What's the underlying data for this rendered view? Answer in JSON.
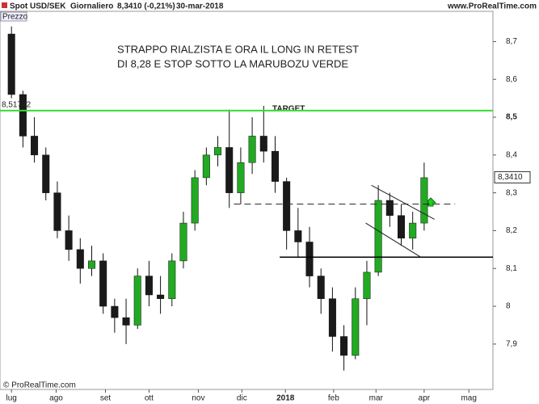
{
  "chart_data": {
    "type": "candlestick",
    "title": "Spot USD/SEK",
    "period": "Giornaliero",
    "last_price": "8,3410 (-0,21%)",
    "date": "30-mar-2018",
    "source": "www.ProRealTime.com",
    "panel_label": "Prezzo",
    "copyright": "© ProRealTime.com",
    "annotation_lines": [
      "STRAPPO RIALZISTA E ORA IL LONG IN RETEST",
      "DI 8,28 E STOP SOTTO LA MARUBOZU VERDE"
    ],
    "target_label": "TARGET",
    "target_value_label": "8,51742",
    "last_value_label": "8,3410",
    "up_color": "#22aa22",
    "down_color": "#1a1a1a",
    "categories": [
      null,
      null,
      null,
      null,
      null,
      null,
      null,
      null,
      null,
      null,
      null,
      null,
      null,
      null,
      null,
      null,
      null,
      null,
      null,
      null,
      null,
      null,
      null,
      null,
      null,
      null,
      null,
      null,
      null,
      null,
      null,
      null,
      null,
      null,
      null,
      null,
      null
    ],
    "open": [
      8.72,
      8.56,
      8.45,
      8.4,
      8.3,
      8.2,
      8.15,
      8.1,
      8.12,
      8.0,
      7.97,
      7.95,
      8.08,
      8.03,
      8.02,
      8.12,
      8.22,
      8.34,
      8.4,
      8.42,
      8.3,
      8.38,
      8.45,
      8.41,
      8.33,
      8.2,
      8.17,
      8.08,
      8.02,
      7.92,
      7.87,
      8.02,
      8.09,
      8.28,
      8.24,
      8.18,
      8.22
    ],
    "high": [
      8.74,
      8.57,
      8.5,
      8.42,
      8.33,
      8.24,
      8.18,
      8.16,
      8.14,
      8.02,
      8.02,
      8.1,
      8.12,
      8.08,
      8.14,
      8.25,
      8.36,
      8.42,
      8.45,
      8.52,
      8.42,
      8.5,
      8.53,
      8.45,
      8.34,
      8.26,
      8.21,
      8.1,
      8.05,
      7.95,
      8.05,
      8.12,
      8.32,
      8.3,
      8.27,
      8.25,
      8.38
    ],
    "low": [
      8.55,
      8.42,
      8.38,
      8.28,
      8.18,
      8.12,
      8.06,
      8.08,
      7.98,
      7.93,
      7.9,
      7.94,
      8.0,
      7.98,
      8.0,
      8.1,
      8.2,
      8.32,
      8.37,
      8.26,
      8.27,
      8.35,
      8.38,
      8.3,
      8.15,
      8.13,
      8.05,
      7.98,
      7.88,
      7.83,
      7.86,
      7.95,
      8.08,
      8.21,
      8.16,
      8.15,
      8.2
    ],
    "close": [
      8.56,
      8.45,
      8.4,
      8.3,
      8.2,
      8.15,
      8.1,
      8.12,
      8.0,
      7.97,
      7.95,
      8.08,
      8.03,
      8.02,
      8.12,
      8.22,
      8.34,
      8.4,
      8.42,
      8.3,
      8.38,
      8.45,
      8.41,
      8.33,
      8.2,
      8.17,
      8.08,
      8.02,
      7.92,
      7.87,
      8.02,
      8.09,
      8.28,
      8.24,
      8.18,
      8.22,
      8.34
    ],
    "xlim": [
      -1,
      42
    ],
    "xticks": [
      {
        "value": 0,
        "label": "lug"
      },
      {
        "value": 3.9,
        "label": "ago"
      },
      {
        "value": 8.2,
        "label": "set"
      },
      {
        "value": 12,
        "label": "ott"
      },
      {
        "value": 16.3,
        "label": "nov"
      },
      {
        "value": 20.1,
        "label": "dic"
      },
      {
        "value": 23.9,
        "label": "2018"
      },
      {
        "value": 28.1,
        "label": "feb"
      },
      {
        "value": 31.8,
        "label": "mar"
      },
      {
        "value": 36,
        "label": "apr"
      },
      {
        "value": 39.9,
        "label": "mag"
      }
    ],
    "ylim": [
      7.78,
      8.78
    ],
    "yticks": [
      {
        "value": 7.9,
        "label": "7,9"
      },
      8,
      {
        "value": 8.1,
        "label": "8,1"
      },
      {
        "value": 8.2,
        "label": "8,2"
      },
      {
        "value": 8.3,
        "label": "8,3"
      },
      {
        "value": 8.4,
        "label": "8,4"
      },
      {
        "value": 8.5,
        "label": "8,5"
      },
      {
        "value": 8.6,
        "label": "8,6"
      },
      {
        "value": 8.7,
        "label": "8,7"
      }
    ],
    "target_value": 8.51742,
    "last_value": 8.341,
    "lines": [
      {
        "x": [
          -1,
          42
        ],
        "y": [
          8.51742,
          8.51742
        ],
        "color": "#33dd33",
        "width": 2,
        "dash": false
      },
      {
        "x": [
          19.4,
          38.7
        ],
        "y": [
          8.27,
          8.27
        ],
        "color": "#222222",
        "width": 1,
        "dash": true
      },
      {
        "x": [
          23.4,
          42
        ],
        "y": [
          8.13,
          8.13
        ],
        "color": "#000000",
        "width": 1.5,
        "dash": false
      },
      {
        "x": [
          31.4,
          36.9
        ],
        "y": [
          8.32,
          8.23
        ],
        "color": "#222222",
        "width": 1,
        "dash": false
      },
      {
        "x": [
          30.9,
          35.7
        ],
        "y": [
          8.22,
          8.13
        ],
        "color": "#222222",
        "width": 1,
        "dash": false
      }
    ]
  }
}
